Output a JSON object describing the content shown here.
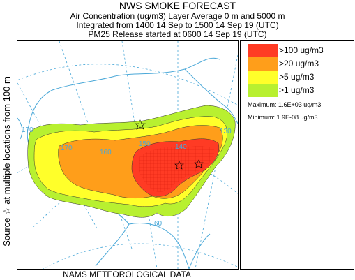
{
  "header": {
    "title": "NWS SMOKE FORECAST",
    "line1": "Air Concentration (ug/m3) Layer Average    0 m and  5000 m",
    "line2": "Integrated from 1400 14 Sep to 1500 14 Sep 19 (UTC)",
    "line3": "PM25 Release started at 0600 14 Sep 19 (UTC)"
  },
  "side_label": "Source ☆  at multiple locations      from   100 m",
  "footer": "NAMS METEOROLOGICAL DATA",
  "map": {
    "grid_labels": [
      "170",
      "170",
      "160",
      "150",
      "140",
      "130",
      "60"
    ],
    "colors": {
      "coast": "#4aa8d8",
      "grid": "#4aa8d8",
      "above_100": "#ff3b24",
      "above_20": "#ff9e1a",
      "above_5": "#ffff2a",
      "above_1": "#b8f030"
    }
  },
  "legend": {
    "items": [
      {
        "label": ">100 ug/m3",
        "color": "#ff3b24"
      },
      {
        "label": ">20 ug/m3",
        "color": "#ff9e1a"
      },
      {
        "label": ">5 ug/m3",
        "color": "#ffff2a"
      },
      {
        "label": ">1 ug/m3",
        "color": "#b8f030"
      }
    ],
    "maximum": "Maximum: 1.6E+03 ug/m3",
    "minimum": "Minimum: 1.9E-08 ug/m3"
  }
}
